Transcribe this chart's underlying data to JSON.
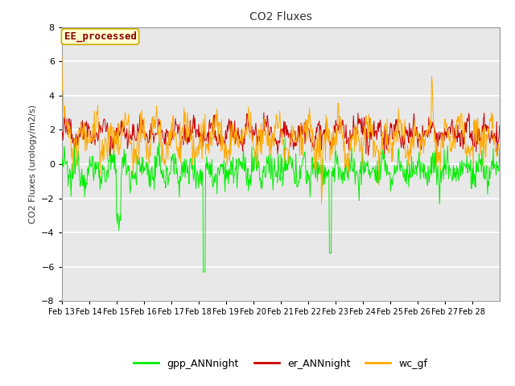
{
  "title": "CO2 Fluxes",
  "ylabel": "CO2 Fluxes (urology/m2/s)",
  "xlabel": "",
  "ylim": [
    -8,
    8
  ],
  "yticks": [
    -8,
    -6,
    -4,
    -2,
    0,
    2,
    4,
    6,
    8
  ],
  "xtick_labels": [
    "Feb 13",
    "Feb 14",
    "Feb 15",
    "Feb 16",
    "Feb 17",
    "Feb 18",
    "Feb 19",
    "Feb 20",
    "Feb 21",
    "Feb 22",
    "Feb 23",
    "Feb 24",
    "Feb 25",
    "Feb 26",
    "Feb 27",
    "Feb 28"
  ],
  "gpp_color": "#00ee00",
  "er_color": "#cc0000",
  "wc_color": "#ffaa00",
  "fig_bg": "#ffffff",
  "plot_bg": "#e8e8e8",
  "grid_color": "#ffffff",
  "annotation_text": "EE_processed",
  "annotation_color": "#8b0000",
  "annotation_bg": "#ffffd0",
  "annotation_edge": "#ccaa00",
  "legend_labels": [
    "gpp_ANNnight",
    "er_ANNnight",
    "wc_gf"
  ],
  "n_points": 768,
  "seed": 12345
}
